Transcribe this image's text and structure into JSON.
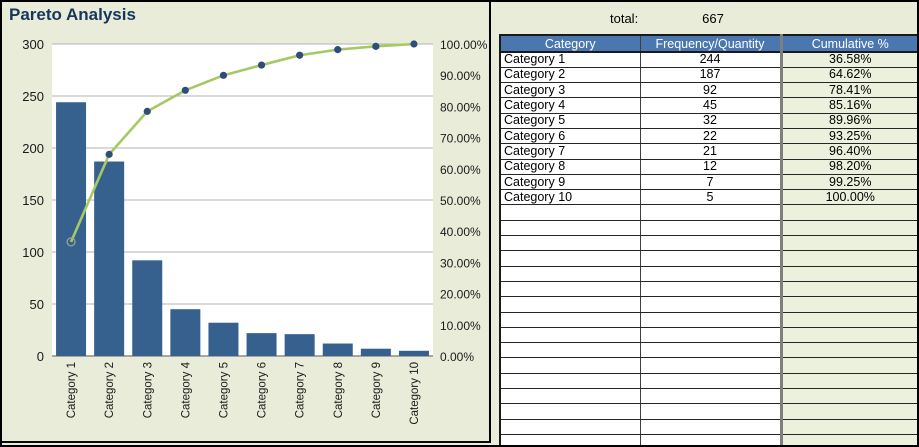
{
  "title": "Pareto Analysis",
  "total": {
    "label": "total:",
    "value": "667"
  },
  "table": {
    "columns": [
      "Category",
      "Frequency/Quantity",
      "Cumulative %"
    ],
    "rows": [
      {
        "category": "Category 1",
        "frequency": "244",
        "cumulative": "36.58%"
      },
      {
        "category": "Category 2",
        "frequency": "187",
        "cumulative": "64.62%"
      },
      {
        "category": "Category 3",
        "frequency": "92",
        "cumulative": "78.41%"
      },
      {
        "category": "Category 4",
        "frequency": "45",
        "cumulative": "85.16%"
      },
      {
        "category": "Category 5",
        "frequency": "32",
        "cumulative": "89.96%"
      },
      {
        "category": "Category 6",
        "frequency": "22",
        "cumulative": "93.25%"
      },
      {
        "category": "Category 7",
        "frequency": "21",
        "cumulative": "96.40%"
      },
      {
        "category": "Category 8",
        "frequency": "12",
        "cumulative": "98.20%"
      },
      {
        "category": "Category 9",
        "frequency": "7",
        "cumulative": "99.25%"
      },
      {
        "category": "Category 10",
        "frequency": "5",
        "cumulative": "100.00%"
      }
    ],
    "empty_row_count": 16
  },
  "chart_data": {
    "type": "pareto",
    "title": "Pareto Analysis",
    "categories": [
      "Category 1",
      "Category 2",
      "Category 3",
      "Category 4",
      "Category 5",
      "Category 6",
      "Category 7",
      "Category 8",
      "Category 9",
      "Category 10"
    ],
    "series": [
      {
        "name": "Frequency/Quantity",
        "type": "bar",
        "values": [
          244,
          187,
          92,
          45,
          32,
          22,
          21,
          12,
          7,
          5
        ]
      },
      {
        "name": "Cumulative %",
        "type": "line",
        "values": [
          36.58,
          64.62,
          78.41,
          85.16,
          89.96,
          93.25,
          96.4,
          98.2,
          99.25,
          100.0
        ]
      }
    ],
    "left_axis": {
      "min": 0,
      "max": 300,
      "tick_step": 50,
      "tick_labels": [
        "0",
        "50",
        "100",
        "150",
        "200",
        "250",
        "300"
      ]
    },
    "right_axis": {
      "min": 0,
      "max": 100,
      "tick_labels": [
        "0.00%",
        "10.00%",
        "20.00%",
        "30.00%",
        "40.00%",
        "50.00%",
        "60.00%",
        "70.00%",
        "80.00%",
        "90.00%",
        "100.00%"
      ]
    },
    "grid": true,
    "legend": "none",
    "first_line_marker_style": "open-circle"
  },
  "colors": {
    "page_bg": "#e9ecd9",
    "plot_bg": "#ffffff",
    "bar": "#36618f",
    "line": "#a6c965",
    "marker": "#2e4d7b",
    "open_marker_stroke": "#9aa489",
    "grid": "#b3b3b3",
    "axis_line": "#8c8c8c",
    "header_bg": "#4a77b0",
    "header_text": "#ffffff",
    "cumulative_col_bg": "#ebf1dd",
    "title_text": "#17365d"
  }
}
